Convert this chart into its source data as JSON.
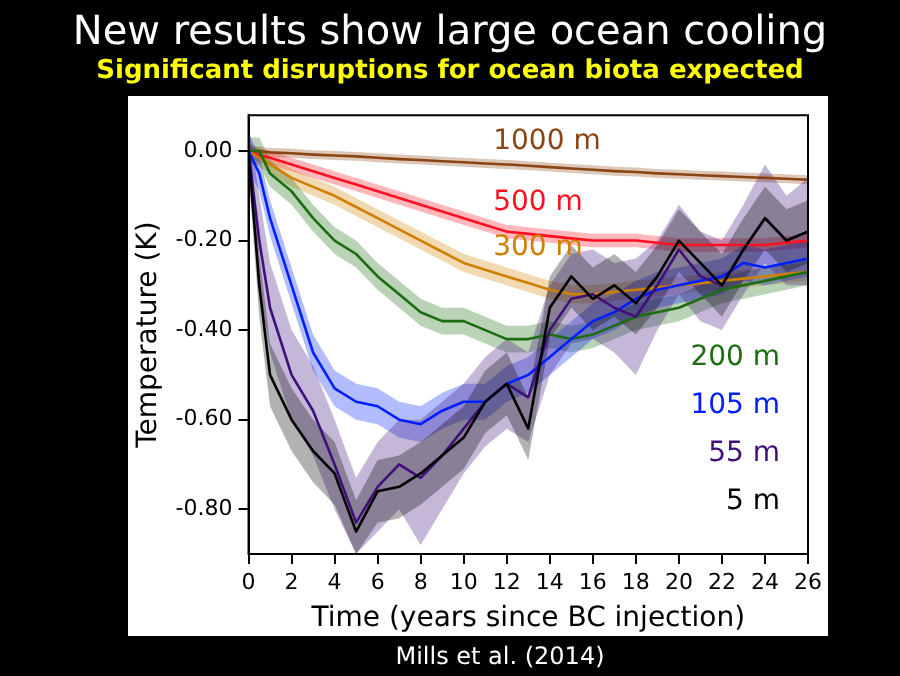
{
  "chart_data": {
    "type": "line",
    "title": "New results show large ocean cooling",
    "subtitle": "Significant disruptions for ocean biota expected",
    "xlabel": "Time (years since BC injection)",
    "ylabel": "Temperature (K)",
    "annotations": [
      "Mills et al. (2014)"
    ],
    "x": [
      0,
      0.5,
      1,
      2,
      3,
      4,
      5,
      6,
      7,
      8,
      9,
      10,
      11,
      12,
      13,
      14,
      15,
      16,
      17,
      18,
      19,
      20,
      21,
      22,
      23,
      24,
      25,
      26
    ],
    "series": [
      {
        "name": "1000 m",
        "color": "#8b4513",
        "values": [
          0,
          0,
          -0.003,
          -0.005,
          -0.008,
          -0.01,
          -0.012,
          -0.015,
          -0.018,
          -0.02,
          -0.023,
          -0.025,
          -0.028,
          -0.03,
          -0.033,
          -0.036,
          -0.039,
          -0.042,
          -0.045,
          -0.047,
          -0.05,
          -0.052,
          -0.054,
          -0.056,
          -0.058,
          -0.06,
          -0.062,
          -0.064
        ],
        "lower": [
          -0.01,
          -0.01,
          -0.013,
          -0.015,
          -0.018,
          -0.02,
          -0.022,
          -0.025,
          -0.028,
          -0.03,
          -0.033,
          -0.035,
          -0.038,
          -0.04,
          -0.043,
          -0.046,
          -0.049,
          -0.052,
          -0.055,
          -0.057,
          -0.06,
          -0.062,
          -0.064,
          -0.066,
          -0.068,
          -0.07,
          -0.072,
          -0.074
        ],
        "upper": [
          0.01,
          0.01,
          0.007,
          0.005,
          0.002,
          0,
          -0.002,
          -0.005,
          -0.008,
          -0.01,
          -0.013,
          -0.015,
          -0.018,
          -0.02,
          -0.023,
          -0.026,
          -0.029,
          -0.032,
          -0.035,
          -0.037,
          -0.04,
          -0.042,
          -0.044,
          -0.046,
          -0.048,
          -0.05,
          -0.052,
          -0.054
        ]
      },
      {
        "name": "500 m",
        "color": "#ff1020",
        "values": [
          0,
          -0.01,
          -0.015,
          -0.03,
          -0.045,
          -0.06,
          -0.075,
          -0.09,
          -0.105,
          -0.12,
          -0.135,
          -0.15,
          -0.165,
          -0.18,
          -0.185,
          -0.19,
          -0.195,
          -0.2,
          -0.2,
          -0.2,
          -0.205,
          -0.21,
          -0.21,
          -0.21,
          -0.21,
          -0.21,
          -0.205,
          -0.2
        ],
        "lower": [
          -0.015,
          -0.025,
          -0.03,
          -0.045,
          -0.06,
          -0.075,
          -0.09,
          -0.105,
          -0.12,
          -0.135,
          -0.15,
          -0.165,
          -0.18,
          -0.195,
          -0.2,
          -0.205,
          -0.21,
          -0.215,
          -0.215,
          -0.215,
          -0.22,
          -0.225,
          -0.225,
          -0.225,
          -0.225,
          -0.225,
          -0.22,
          -0.215
        ],
        "upper": [
          0.015,
          0.005,
          0,
          -0.015,
          -0.03,
          -0.045,
          -0.06,
          -0.075,
          -0.09,
          -0.105,
          -0.12,
          -0.135,
          -0.15,
          -0.165,
          -0.17,
          -0.175,
          -0.18,
          -0.185,
          -0.185,
          -0.185,
          -0.19,
          -0.195,
          -0.195,
          -0.195,
          -0.195,
          -0.195,
          -0.19,
          -0.185
        ]
      },
      {
        "name": "300 m",
        "color": "#d08000",
        "values": [
          0,
          -0.015,
          -0.03,
          -0.06,
          -0.08,
          -0.1,
          -0.125,
          -0.15,
          -0.175,
          -0.2,
          -0.225,
          -0.25,
          -0.265,
          -0.28,
          -0.295,
          -0.31,
          -0.32,
          -0.32,
          -0.315,
          -0.31,
          -0.305,
          -0.3,
          -0.295,
          -0.29,
          -0.285,
          -0.28,
          -0.275,
          -0.27
        ],
        "lower": [
          -0.02,
          -0.035,
          -0.05,
          -0.08,
          -0.1,
          -0.12,
          -0.145,
          -0.17,
          -0.195,
          -0.22,
          -0.245,
          -0.27,
          -0.285,
          -0.3,
          -0.315,
          -0.33,
          -0.34,
          -0.34,
          -0.335,
          -0.33,
          -0.325,
          -0.32,
          -0.315,
          -0.31,
          -0.305,
          -0.3,
          -0.295,
          -0.29
        ],
        "upper": [
          0.02,
          0.005,
          -0.01,
          -0.04,
          -0.06,
          -0.08,
          -0.105,
          -0.13,
          -0.155,
          -0.18,
          -0.205,
          -0.23,
          -0.245,
          -0.26,
          -0.275,
          -0.29,
          -0.3,
          -0.3,
          -0.295,
          -0.29,
          -0.285,
          -0.28,
          -0.275,
          -0.27,
          -0.265,
          -0.26,
          -0.255,
          -0.25
        ]
      },
      {
        "name": "200 m",
        "color": "#1a6e10",
        "values": [
          0,
          0,
          -0.05,
          -0.09,
          -0.15,
          -0.2,
          -0.23,
          -0.28,
          -0.32,
          -0.36,
          -0.38,
          -0.38,
          -0.4,
          -0.42,
          -0.42,
          -0.41,
          -0.42,
          -0.41,
          -0.39,
          -0.37,
          -0.36,
          -0.35,
          -0.33,
          -0.31,
          -0.3,
          -0.29,
          -0.28,
          -0.27
        ],
        "lower": [
          -0.03,
          -0.03,
          -0.08,
          -0.12,
          -0.18,
          -0.23,
          -0.26,
          -0.31,
          -0.35,
          -0.39,
          -0.41,
          -0.41,
          -0.43,
          -0.45,
          -0.45,
          -0.44,
          -0.45,
          -0.44,
          -0.42,
          -0.4,
          -0.39,
          -0.38,
          -0.36,
          -0.34,
          -0.33,
          -0.32,
          -0.31,
          -0.3
        ],
        "upper": [
          0.03,
          0.03,
          -0.02,
          -0.06,
          -0.12,
          -0.17,
          -0.2,
          -0.25,
          -0.29,
          -0.33,
          -0.35,
          -0.35,
          -0.37,
          -0.39,
          -0.39,
          -0.38,
          -0.39,
          -0.38,
          -0.36,
          -0.34,
          -0.33,
          -0.32,
          -0.3,
          -0.28,
          -0.27,
          -0.26,
          -0.25,
          -0.24
        ]
      },
      {
        "name": "105 m",
        "color": "#0020ff",
        "values": [
          0,
          -0.05,
          -0.15,
          -0.3,
          -0.45,
          -0.53,
          -0.56,
          -0.57,
          -0.6,
          -0.61,
          -0.58,
          -0.56,
          -0.56,
          -0.52,
          -0.5,
          -0.46,
          -0.42,
          -0.38,
          -0.36,
          -0.33,
          -0.31,
          -0.3,
          -0.29,
          -0.28,
          -0.25,
          -0.26,
          -0.25,
          -0.24
        ],
        "lower": [
          -0.04,
          -0.09,
          -0.19,
          -0.34,
          -0.49,
          -0.57,
          -0.6,
          -0.61,
          -0.64,
          -0.65,
          -0.62,
          -0.6,
          -0.6,
          -0.56,
          -0.54,
          -0.5,
          -0.46,
          -0.42,
          -0.4,
          -0.37,
          -0.35,
          -0.34,
          -0.33,
          -0.32,
          -0.29,
          -0.3,
          -0.29,
          -0.28
        ],
        "upper": [
          0.04,
          -0.01,
          -0.11,
          -0.26,
          -0.41,
          -0.49,
          -0.52,
          -0.53,
          -0.56,
          -0.57,
          -0.54,
          -0.52,
          -0.52,
          -0.48,
          -0.46,
          -0.42,
          -0.38,
          -0.34,
          -0.32,
          -0.29,
          -0.27,
          -0.26,
          -0.25,
          -0.24,
          -0.21,
          -0.22,
          -0.21,
          -0.2
        ]
      },
      {
        "name": "55 m",
        "color": "#40107a",
        "values": [
          0,
          -0.2,
          -0.35,
          -0.5,
          -0.58,
          -0.7,
          -0.83,
          -0.75,
          -0.7,
          -0.73,
          -0.68,
          -0.62,
          -0.56,
          -0.52,
          -0.55,
          -0.4,
          -0.33,
          -0.32,
          -0.35,
          -0.37,
          -0.3,
          -0.22,
          -0.28,
          -0.3,
          -0.22,
          -0.15,
          -0.2,
          -0.18
        ],
        "lower": [
          -0.06,
          -0.3,
          -0.45,
          -0.6,
          -0.68,
          -0.8,
          -0.9,
          -0.85,
          -0.8,
          -0.88,
          -0.8,
          -0.72,
          -0.66,
          -0.62,
          -0.65,
          -0.5,
          -0.43,
          -0.42,
          -0.45,
          -0.5,
          -0.4,
          -0.32,
          -0.38,
          -0.4,
          -0.32,
          -0.25,
          -0.3,
          -0.3
        ],
        "upper": [
          0.06,
          -0.1,
          -0.25,
          -0.4,
          -0.48,
          -0.6,
          -0.73,
          -0.65,
          -0.6,
          -0.6,
          -0.56,
          -0.52,
          -0.46,
          -0.42,
          -0.45,
          -0.3,
          -0.23,
          -0.22,
          -0.25,
          -0.24,
          -0.2,
          -0.12,
          -0.18,
          -0.2,
          -0.12,
          -0.03,
          -0.1,
          -0.06
        ]
      },
      {
        "name": "5 m",
        "color": "#000000",
        "values": [
          0,
          -0.3,
          -0.5,
          -0.6,
          -0.67,
          -0.72,
          -0.85,
          -0.76,
          -0.75,
          -0.72,
          -0.68,
          -0.64,
          -0.56,
          -0.52,
          -0.62,
          -0.35,
          -0.28,
          -0.33,
          -0.3,
          -0.34,
          -0.28,
          -0.2,
          -0.25,
          -0.3,
          -0.22,
          -0.15,
          -0.2,
          -0.18
        ],
        "lower": [
          -0.05,
          -0.37,
          -0.57,
          -0.67,
          -0.74,
          -0.79,
          -0.9,
          -0.83,
          -0.82,
          -0.79,
          -0.75,
          -0.71,
          -0.63,
          -0.59,
          -0.69,
          -0.42,
          -0.35,
          -0.4,
          -0.37,
          -0.41,
          -0.35,
          -0.27,
          -0.32,
          -0.37,
          -0.29,
          -0.22,
          -0.27,
          -0.25
        ],
        "upper": [
          0.05,
          -0.23,
          -0.43,
          -0.53,
          -0.6,
          -0.65,
          -0.78,
          -0.69,
          -0.68,
          -0.65,
          -0.61,
          -0.57,
          -0.49,
          -0.45,
          -0.55,
          -0.28,
          -0.21,
          -0.26,
          -0.23,
          -0.27,
          -0.21,
          -0.13,
          -0.18,
          -0.23,
          -0.15,
          -0.08,
          -0.13,
          -0.11
        ]
      }
    ],
    "xlim": [
      0,
      26
    ],
    "xticks": [
      0,
      2,
      4,
      6,
      8,
      10,
      12,
      14,
      16,
      18,
      20,
      22,
      24,
      26
    ],
    "ylim": [
      -0.9,
      0.08
    ],
    "yticks": [
      {
        "value": 0,
        "label": "0.00"
      },
      {
        "value": -0.2,
        "label": "-0.20"
      },
      {
        "value": -0.4,
        "label": "-0.40"
      },
      {
        "value": -0.6,
        "label": "-0.60"
      },
      {
        "value": -0.8,
        "label": "-0.80"
      }
    ],
    "grid": false,
    "legend": false,
    "marker": "none",
    "line_style": "solid"
  }
}
